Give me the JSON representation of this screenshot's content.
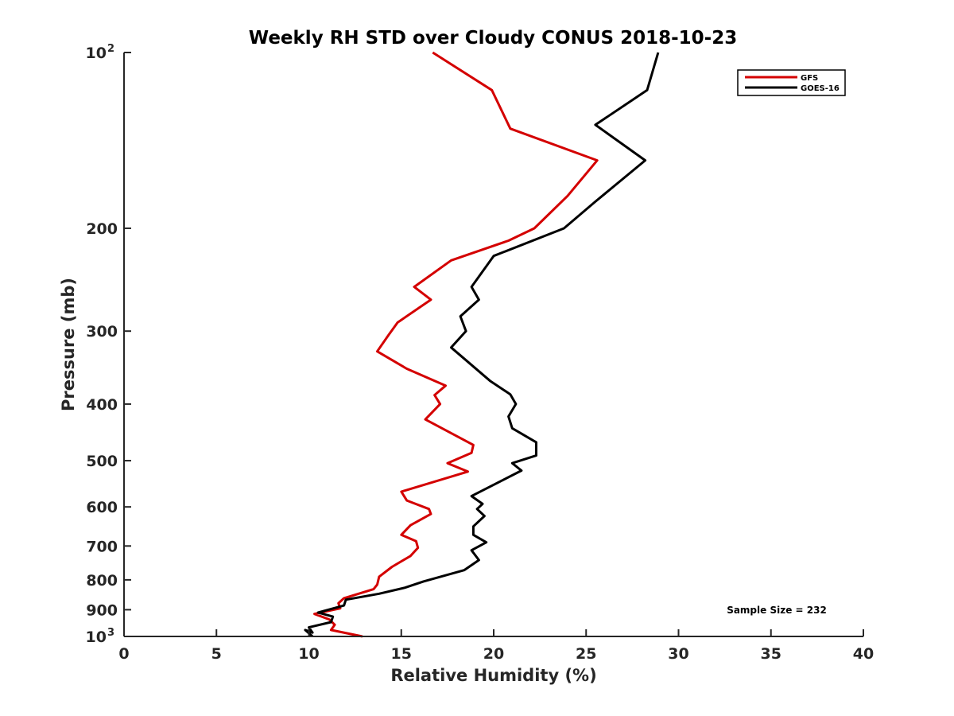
{
  "chart_data": {
    "type": "line",
    "title": "Weekly RH STD over Cloudy CONUS 2018-10-23",
    "xlabel": "Relative Humidity (%)",
    "ylabel": "Pressure (mb)",
    "xlim": [
      0,
      40
    ],
    "ylim": [
      100,
      1000
    ],
    "yscale": "log",
    "y_reversed": true,
    "grid": false,
    "x_ticks": [
      0,
      5,
      10,
      15,
      20,
      25,
      30,
      35,
      40
    ],
    "x_tick_labels": [
      "0",
      "5",
      "10",
      "15",
      "20",
      "25",
      "30",
      "35",
      "40"
    ],
    "y_ticks": [
      {
        "value": 100,
        "base": "10",
        "exp": "2"
      },
      {
        "value": 200,
        "label": "200"
      },
      {
        "value": 300,
        "label": "300"
      },
      {
        "value": 400,
        "label": "400"
      },
      {
        "value": 500,
        "label": "500"
      },
      {
        "value": 600,
        "label": "600"
      },
      {
        "value": 700,
        "label": "700"
      },
      {
        "value": 800,
        "label": "800"
      },
      {
        "value": 900,
        "label": "900"
      },
      {
        "value": 1000,
        "base": "10",
        "exp": "3"
      }
    ],
    "legend": {
      "position": "top-right",
      "entries": [
        "GFS",
        "GOES-16"
      ]
    },
    "annotation": "Sample Size = 232",
    "series": [
      {
        "name": "GFS",
        "color": "#d40000",
        "points": [
          [
            16.7,
            100
          ],
          [
            19.9,
            116
          ],
          [
            20.9,
            135
          ],
          [
            25.6,
            153
          ],
          [
            24.0,
            176
          ],
          [
            22.2,
            200
          ],
          [
            20.8,
            210
          ],
          [
            17.7,
            227
          ],
          [
            15.7,
            252
          ],
          [
            16.6,
            265
          ],
          [
            14.8,
            290
          ],
          [
            14.3,
            305
          ],
          [
            13.7,
            325
          ],
          [
            15.3,
            348
          ],
          [
            17.4,
            372
          ],
          [
            16.8,
            386
          ],
          [
            17.1,
            400
          ],
          [
            16.3,
            425
          ],
          [
            18.9,
            470
          ],
          [
            18.8,
            485
          ],
          [
            17.5,
            505
          ],
          [
            18.6,
            522
          ],
          [
            15.0,
            565
          ],
          [
            15.3,
            585
          ],
          [
            16.5,
            605
          ],
          [
            16.6,
            617
          ],
          [
            15.5,
            645
          ],
          [
            15.0,
            670
          ],
          [
            15.8,
            687
          ],
          [
            15.9,
            705
          ],
          [
            15.5,
            728
          ],
          [
            14.5,
            760
          ],
          [
            13.8,
            790
          ],
          [
            13.7,
            815
          ],
          [
            13.5,
            830
          ],
          [
            11.9,
            860
          ],
          [
            11.6,
            877
          ],
          [
            11.7,
            895
          ],
          [
            10.3,
            915
          ],
          [
            11.1,
            935
          ],
          [
            11.4,
            955
          ],
          [
            11.2,
            975
          ],
          [
            12.9,
            1000
          ]
        ]
      },
      {
        "name": "GOES-16",
        "color": "#000000",
        "points": [
          [
            28.9,
            100
          ],
          [
            28.3,
            116
          ],
          [
            25.5,
            133
          ],
          [
            28.2,
            153
          ],
          [
            25.5,
            180
          ],
          [
            23.8,
            200
          ],
          [
            20.0,
            223
          ],
          [
            18.8,
            252
          ],
          [
            19.2,
            265
          ],
          [
            18.2,
            283
          ],
          [
            18.5,
            300
          ],
          [
            17.7,
            320
          ],
          [
            19.8,
            365
          ],
          [
            20.9,
            385
          ],
          [
            21.2,
            400
          ],
          [
            20.8,
            420
          ],
          [
            21.0,
            440
          ],
          [
            22.3,
            465
          ],
          [
            22.3,
            490
          ],
          [
            21.0,
            505
          ],
          [
            21.5,
            520
          ],
          [
            18.8,
            575
          ],
          [
            19.4,
            593
          ],
          [
            19.1,
            605
          ],
          [
            19.5,
            622
          ],
          [
            18.9,
            648
          ],
          [
            18.9,
            670
          ],
          [
            19.6,
            690
          ],
          [
            18.8,
            712
          ],
          [
            19.2,
            740
          ],
          [
            18.4,
            770
          ],
          [
            16.2,
            805
          ],
          [
            15.2,
            825
          ],
          [
            13.8,
            845
          ],
          [
            12.0,
            865
          ],
          [
            11.9,
            885
          ],
          [
            10.5,
            910
          ],
          [
            11.3,
            925
          ],
          [
            11.2,
            945
          ],
          [
            10.0,
            965
          ],
          [
            10.2,
            985
          ],
          [
            9.8,
            975
          ],
          [
            10.2,
            1000
          ]
        ]
      }
    ]
  }
}
